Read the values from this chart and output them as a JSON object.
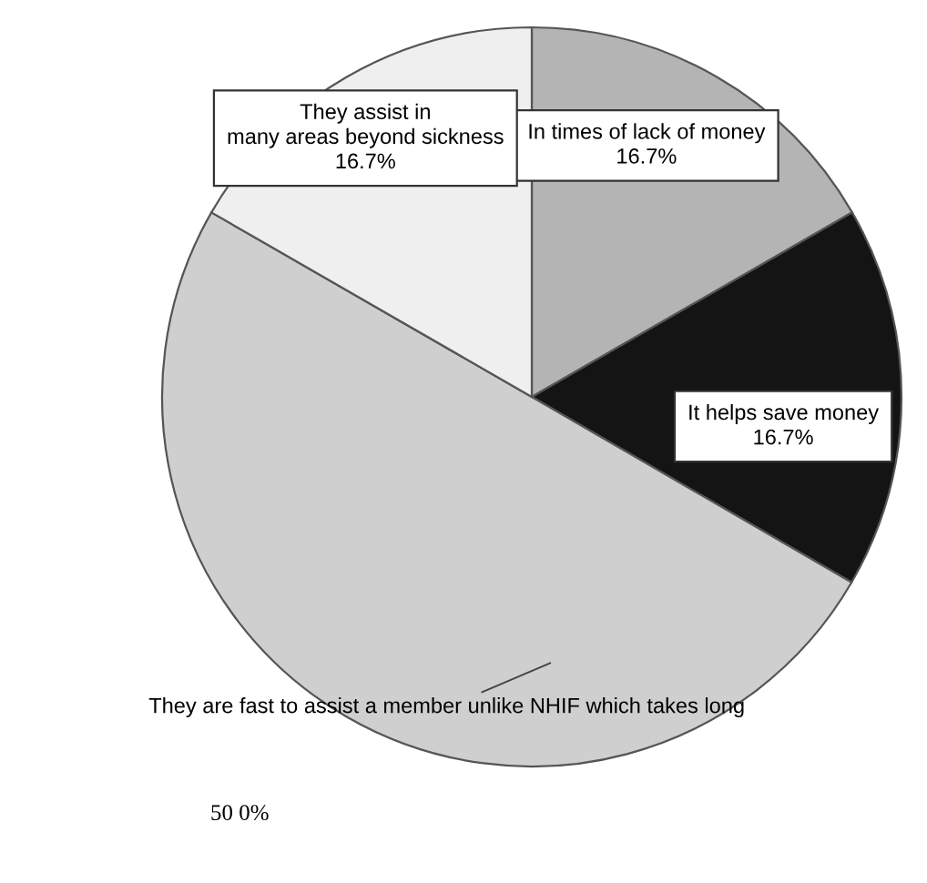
{
  "chart_data": {
    "type": "pie",
    "categories": [
      "In times of lack of money",
      "It helps save money",
      "They are fast to assist a member unlike NHIF which takes long",
      "They assist in many areas beyond sickness"
    ],
    "values": [
      16.7,
      16.7,
      50,
      16.7
    ],
    "value_labels": [
      "16.7%",
      "16.7%",
      "50 0%",
      "16.7%"
    ],
    "colors": [
      "#b4b4b4",
      "#141414",
      "#cfcfcf",
      "#efefef"
    ],
    "legend": false
  }
}
